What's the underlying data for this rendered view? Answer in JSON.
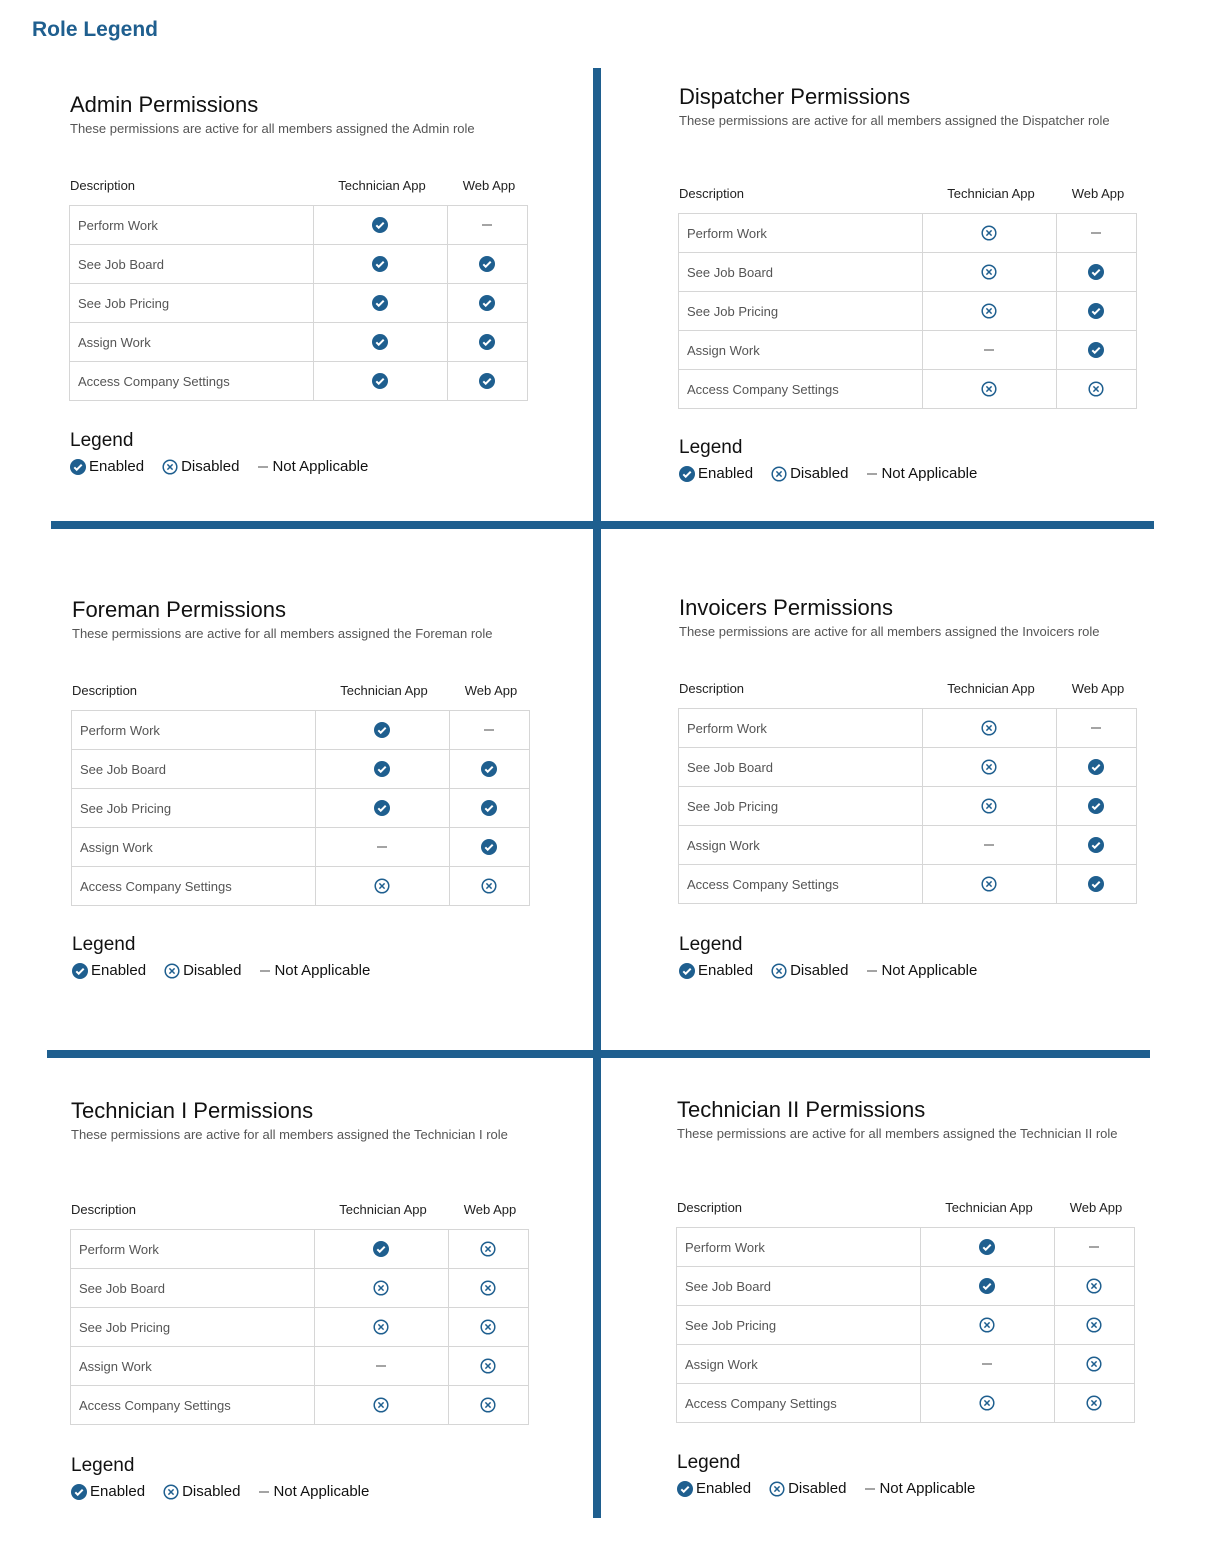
{
  "header": {
    "title": "Role Legend"
  },
  "panels": [
    {
      "title": "Admin Permissions",
      "subtitle": "These permissions are active for all members assigned the Admin role",
      "columns": [
        "Description",
        "Technician App",
        "Web App"
      ],
      "rows": [
        {
          "description": "Perform Work",
          "technician_app": "Enabled",
          "web_app": "Not Applicable"
        },
        {
          "description": "See Job Board",
          "technician_app": "Enabled",
          "web_app": "Enabled"
        },
        {
          "description": "See Job Pricing",
          "technician_app": "Enabled",
          "web_app": "Enabled"
        },
        {
          "description": "Assign Work",
          "technician_app": "Enabled",
          "web_app": "Enabled"
        },
        {
          "description": "Access Company Settings",
          "technician_app": "Enabled",
          "web_app": "Enabled"
        }
      ],
      "legend": {
        "title": "Legend",
        "items": [
          "Enabled",
          "Disabled",
          "Not Applicable"
        ]
      }
    },
    {
      "title": "Dispatcher Permissions",
      "subtitle": "These permissions are active for all members assigned the Dispatcher role",
      "columns": [
        "Description",
        "Technician App",
        "Web App"
      ],
      "rows": [
        {
          "description": "Perform Work",
          "technician_app": "Disabled",
          "web_app": "Not Applicable"
        },
        {
          "description": "See Job Board",
          "technician_app": "Disabled",
          "web_app": "Enabled"
        },
        {
          "description": "See Job Pricing",
          "technician_app": "Disabled",
          "web_app": "Enabled"
        },
        {
          "description": "Assign Work",
          "technician_app": "Not Applicable",
          "web_app": "Enabled"
        },
        {
          "description": "Access Company Settings",
          "technician_app": "Disabled",
          "web_app": "Disabled"
        }
      ],
      "legend": {
        "title": "Legend",
        "items": [
          "Enabled",
          "Disabled",
          "Not Applicable"
        ]
      }
    },
    {
      "title": "Foreman Permissions",
      "subtitle": "These permissions are active for all members assigned the Foreman role",
      "columns": [
        "Description",
        "Technician App",
        "Web App"
      ],
      "rows": [
        {
          "description": "Perform Work",
          "technician_app": "Enabled",
          "web_app": "Not Applicable"
        },
        {
          "description": "See Job Board",
          "technician_app": "Enabled",
          "web_app": "Enabled"
        },
        {
          "description": "See Job Pricing",
          "technician_app": "Enabled",
          "web_app": "Enabled"
        },
        {
          "description": "Assign Work",
          "technician_app": "Not Applicable",
          "web_app": "Enabled"
        },
        {
          "description": "Access Company Settings",
          "technician_app": "Disabled",
          "web_app": "Disabled"
        }
      ],
      "legend": {
        "title": "Legend",
        "items": [
          "Enabled",
          "Disabled",
          "Not Applicable"
        ]
      }
    },
    {
      "title": "Invoicers Permissions",
      "subtitle": "These permissions are active for all members assigned the Invoicers role",
      "columns": [
        "Description",
        "Technician App",
        "Web App"
      ],
      "rows": [
        {
          "description": "Perform Work",
          "technician_app": "Disabled",
          "web_app": "Not Applicable"
        },
        {
          "description": "See Job Board",
          "technician_app": "Disabled",
          "web_app": "Enabled"
        },
        {
          "description": "See Job Pricing",
          "technician_app": "Disabled",
          "web_app": "Enabled"
        },
        {
          "description": "Assign Work",
          "technician_app": "Not Applicable",
          "web_app": "Enabled"
        },
        {
          "description": "Access Company Settings",
          "technician_app": "Disabled",
          "web_app": "Enabled"
        }
      ],
      "legend": {
        "title": "Legend",
        "items": [
          "Enabled",
          "Disabled",
          "Not Applicable"
        ]
      }
    },
    {
      "title": "Technician I Permissions",
      "subtitle": "These permissions are active for all members assigned the Technician I role",
      "columns": [
        "Description",
        "Technician App",
        "Web App"
      ],
      "rows": [
        {
          "description": "Perform Work",
          "technician_app": "Enabled",
          "web_app": "Disabled"
        },
        {
          "description": "See Job Board",
          "technician_app": "Disabled",
          "web_app": "Disabled"
        },
        {
          "description": "See Job Pricing",
          "technician_app": "Disabled",
          "web_app": "Disabled"
        },
        {
          "description": "Assign Work",
          "technician_app": "Not Applicable",
          "web_app": "Disabled"
        },
        {
          "description": "Access Company Settings",
          "technician_app": "Disabled",
          "web_app": "Disabled"
        }
      ],
      "legend": {
        "title": "Legend",
        "items": [
          "Enabled",
          "Disabled",
          "Not Applicable"
        ]
      }
    },
    {
      "title": "Technician II Permissions",
      "subtitle": "These permissions are active for all members assigned the Technician II role",
      "columns": [
        "Description",
        "Technician App",
        "Web App"
      ],
      "rows": [
        {
          "description": "Perform Work",
          "technician_app": "Enabled",
          "web_app": "Not Applicable"
        },
        {
          "description": "See Job Board",
          "technician_app": "Enabled",
          "web_app": "Disabled"
        },
        {
          "description": "See Job Pricing",
          "technician_app": "Disabled",
          "web_app": "Disabled"
        },
        {
          "description": "Assign Work",
          "technician_app": "Not Applicable",
          "web_app": "Disabled"
        },
        {
          "description": "Access Company Settings",
          "technician_app": "Disabled",
          "web_app": "Disabled"
        }
      ],
      "legend": {
        "title": "Legend",
        "items": [
          "Enabled",
          "Disabled",
          "Not Applicable"
        ]
      }
    }
  ]
}
